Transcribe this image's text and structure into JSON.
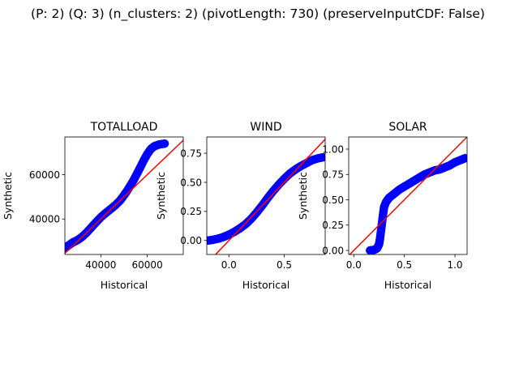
{
  "figure": {
    "suptitle": "(P: 2) (Q: 3) (n_clusters: 2) (pivotLength: 730) (preserveInputCDF: False)"
  },
  "colors": {
    "points": "#0000ff",
    "reference_line": "#ff0000",
    "axes": "#000000"
  },
  "chart_data": [
    {
      "type": "scatter",
      "title": "TOTALLOAD",
      "xlabel": "Historical",
      "ylabel": "Synthetic",
      "xlim": [
        24500,
        75500
      ],
      "ylim": [
        24000,
        77000
      ],
      "xticks": [
        40000,
        60000
      ],
      "xtick_labels": [
        "40000",
        "60000"
      ],
      "yticks": [
        40000,
        60000
      ],
      "ytick_labels": [
        "40000",
        "60000"
      ],
      "reference_line": "y = x",
      "points": [
        [
          24700,
          27000
        ],
        [
          26000,
          28000
        ],
        [
          28000,
          29500
        ],
        [
          30000,
          30500
        ],
        [
          32000,
          32000
        ],
        [
          34000,
          34000
        ],
        [
          36000,
          36300
        ],
        [
          38000,
          38600
        ],
        [
          40000,
          40800
        ],
        [
          42000,
          42600
        ],
        [
          44000,
          44300
        ],
        [
          46000,
          46000
        ],
        [
          48000,
          48000
        ],
        [
          49500,
          50000
        ],
        [
          51000,
          52200
        ],
        [
          52500,
          54700
        ],
        [
          54000,
          57300
        ],
        [
          55500,
          60300
        ],
        [
          57000,
          63300
        ],
        [
          58500,
          66500
        ],
        [
          60000,
          69300
        ],
        [
          61500,
          71500
        ],
        [
          63000,
          72800
        ],
        [
          65000,
          73600
        ],
        [
          67500,
          74000
        ]
      ]
    },
    {
      "type": "scatter",
      "title": "WIND",
      "xlabel": "Historical",
      "ylabel": "Synthetic",
      "xlim": [
        -0.2,
        0.87
      ],
      "ylim": [
        -0.12,
        0.89
      ],
      "xticks": [
        0.0,
        0.5
      ],
      "xtick_labels": [
        "0.0",
        "0.5"
      ],
      "yticks": [
        0.0,
        0.25,
        0.5,
        0.75
      ],
      "ytick_labels": [
        "0.00",
        "0.25",
        "0.50",
        "0.75"
      ],
      "reference_line": "y = x",
      "points": [
        [
          -0.19,
          0.0
        ],
        [
          -0.15,
          0.005
        ],
        [
          -0.1,
          0.015
        ],
        [
          -0.05,
          0.03
        ],
        [
          0.0,
          0.05
        ],
        [
          0.05,
          0.075
        ],
        [
          0.1,
          0.105
        ],
        [
          0.15,
          0.14
        ],
        [
          0.2,
          0.185
        ],
        [
          0.25,
          0.24
        ],
        [
          0.3,
          0.3
        ],
        [
          0.35,
          0.365
        ],
        [
          0.4,
          0.425
        ],
        [
          0.45,
          0.48
        ],
        [
          0.5,
          0.53
        ],
        [
          0.55,
          0.575
        ],
        [
          0.6,
          0.61
        ],
        [
          0.65,
          0.64
        ],
        [
          0.7,
          0.665
        ],
        [
          0.75,
          0.69
        ],
        [
          0.8,
          0.705
        ],
        [
          0.85,
          0.715
        ]
      ]
    },
    {
      "type": "scatter",
      "title": "SOLAR",
      "xlabel": "Historical",
      "ylabel": "Synthetic",
      "xlim": [
        -0.05,
        1.12
      ],
      "ylim": [
        -0.04,
        1.12
      ],
      "xticks": [
        0.0,
        0.5,
        1.0
      ],
      "xtick_labels": [
        "0.0",
        "0.5",
        "1.0"
      ],
      "yticks": [
        0.0,
        0.25,
        0.5,
        0.75,
        1.0
      ],
      "ytick_labels": [
        "0.00",
        "0.25",
        "0.50",
        "0.75",
        "1.00"
      ],
      "reference_line": "y = x",
      "points": [
        [
          0.16,
          0.0
        ],
        [
          0.2,
          0.005
        ],
        [
          0.23,
          0.02
        ],
        [
          0.25,
          0.06
        ],
        [
          0.26,
          0.12
        ],
        [
          0.27,
          0.2
        ],
        [
          0.28,
          0.28
        ],
        [
          0.29,
          0.36
        ],
        [
          0.3,
          0.43
        ],
        [
          0.32,
          0.48
        ],
        [
          0.35,
          0.52
        ],
        [
          0.4,
          0.56
        ],
        [
          0.45,
          0.6
        ],
        [
          0.5,
          0.63
        ],
        [
          0.55,
          0.66
        ],
        [
          0.6,
          0.69
        ],
        [
          0.65,
          0.72
        ],
        [
          0.7,
          0.75
        ],
        [
          0.75,
          0.77
        ],
        [
          0.8,
          0.79
        ],
        [
          0.85,
          0.8
        ],
        [
          0.9,
          0.82
        ],
        [
          0.95,
          0.84
        ],
        [
          1.0,
          0.87
        ],
        [
          1.05,
          0.89
        ],
        [
          1.1,
          0.91
        ]
      ]
    }
  ]
}
